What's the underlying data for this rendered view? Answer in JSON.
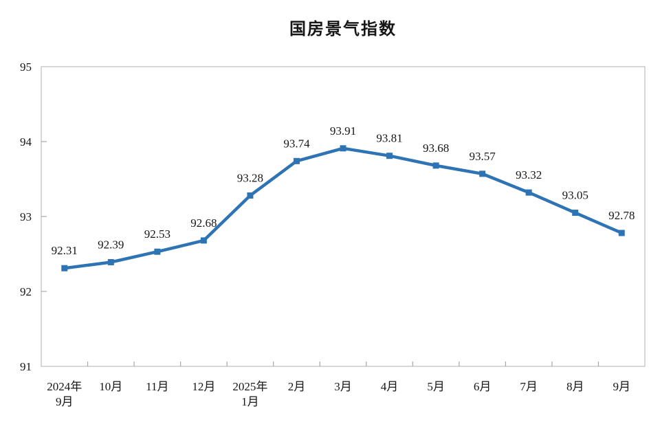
{
  "chart_data": {
    "type": "line",
    "title": "国房景气指数",
    "categories": [
      "2024年\n9月",
      "10月",
      "11月",
      "12月",
      "2025年\n1月",
      "2月",
      "3月",
      "4月",
      "5月",
      "6月",
      "7月",
      "8月",
      "9月"
    ],
    "values": [
      92.31,
      92.39,
      92.53,
      92.68,
      93.28,
      93.74,
      93.91,
      93.81,
      93.68,
      93.57,
      93.32,
      93.05,
      92.78
    ],
    "series_name": "国房景气指数",
    "xlabel": "",
    "ylabel": "",
    "ylim": [
      91,
      95
    ],
    "yticks": [
      "91",
      "92",
      "93",
      "94",
      "95"
    ],
    "grid": false,
    "legend_position": "none",
    "data_labels": true,
    "marker": "square",
    "line_color": "#2e74b5",
    "text_color": "#161616",
    "border_color": "#c3c3c3",
    "tick_color": "#a6a6a6",
    "background_color": "#ffffff"
  }
}
